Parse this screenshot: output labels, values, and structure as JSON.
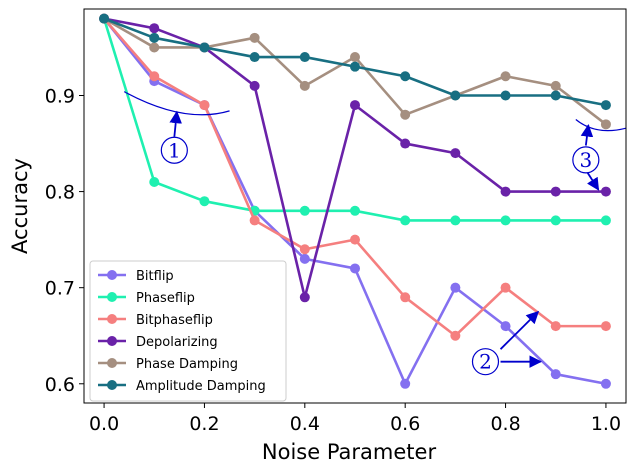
{
  "chart_data": {
    "type": "line",
    "xlabel": "Noise Parameter",
    "ylabel": "Accuracy",
    "xlim": [
      -0.04,
      1.04
    ],
    "ylim": [
      0.58,
      0.99
    ],
    "xticks": [
      0.0,
      0.2,
      0.4,
      0.6,
      0.8,
      1.0
    ],
    "xtick_labels": [
      "0.0",
      "0.2",
      "0.4",
      "0.6",
      "0.8",
      "1.0"
    ],
    "yticks": [
      0.6,
      0.7,
      0.8,
      0.9
    ],
    "ytick_labels": [
      "0.6",
      "0.7",
      "0.8",
      "0.9"
    ],
    "x": [
      0.0,
      0.1,
      0.2,
      0.3,
      0.4,
      0.5,
      0.6,
      0.7,
      0.8,
      0.9,
      1.0
    ],
    "grid": false,
    "legend_position": "bottom-left",
    "series": [
      {
        "name": "Bitflip",
        "color": "#8470f0",
        "values": [
          0.98,
          0.915,
          0.89,
          0.78,
          0.73,
          0.72,
          0.6,
          0.7,
          0.66,
          0.61,
          0.6
        ]
      },
      {
        "name": "Phaseflip",
        "color": "#1ff0b0",
        "values": [
          0.98,
          0.81,
          0.79,
          0.78,
          0.78,
          0.78,
          0.77,
          0.77,
          0.77,
          0.77,
          0.77
        ]
      },
      {
        "name": "Bitphaseflip",
        "color": "#f57f7f",
        "values": [
          0.98,
          0.92,
          0.89,
          0.77,
          0.74,
          0.75,
          0.69,
          0.65,
          0.7,
          0.66,
          0.66
        ]
      },
      {
        "name": "Depolarizing",
        "color": "#6a22a8",
        "values": [
          0.98,
          0.97,
          0.95,
          0.91,
          0.69,
          0.89,
          0.85,
          0.84,
          0.8,
          0.8,
          0.8
        ]
      },
      {
        "name": "Phase Damping",
        "color": "#a58f80",
        "values": [
          0.98,
          0.95,
          0.95,
          0.96,
          0.91,
          0.94,
          0.88,
          0.9,
          0.92,
          0.91,
          0.87
        ]
      },
      {
        "name": "Amplitude Damping",
        "color": "#186f82",
        "values": [
          0.98,
          0.96,
          0.95,
          0.94,
          0.94,
          0.93,
          0.92,
          0.9,
          0.9,
          0.9,
          0.89
        ]
      }
    ],
    "annotations": [
      {
        "label": "1",
        "color": "#0000cc",
        "text_at": [
          0.14,
          0.843
        ],
        "arc_from": [
          0.04,
          0.904
        ],
        "arc_to": [
          0.25,
          0.884
        ],
        "arc_ctrl": [
          0.16,
          0.87
        ],
        "arrows": [
          {
            "from": [
              0.14,
              0.857
            ],
            "to": [
              0.145,
              0.883
            ]
          }
        ]
      },
      {
        "label": "2",
        "color": "#0000cc",
        "text_at": [
          0.76,
          0.623
        ],
        "arrows": [
          {
            "from": [
              0.79,
              0.636
            ],
            "to": [
              0.865,
              0.675
            ]
          },
          {
            "from": [
              0.79,
              0.623
            ],
            "to": [
              0.87,
              0.623
            ]
          }
        ]
      },
      {
        "label": "3",
        "color": "#0000cc",
        "text_at": [
          0.96,
          0.833
        ],
        "arc_from": [
          0.94,
          0.875
        ],
        "arc_to": [
          1.04,
          0.866
        ],
        "arc_ctrl": [
          0.98,
          0.858
        ],
        "arrows": [
          {
            "from": [
              0.96,
              0.848
            ],
            "to": [
              0.965,
              0.869
            ]
          },
          {
            "from": [
              0.963,
              0.82
            ],
            "to": [
              0.985,
              0.802
            ]
          }
        ]
      }
    ]
  }
}
